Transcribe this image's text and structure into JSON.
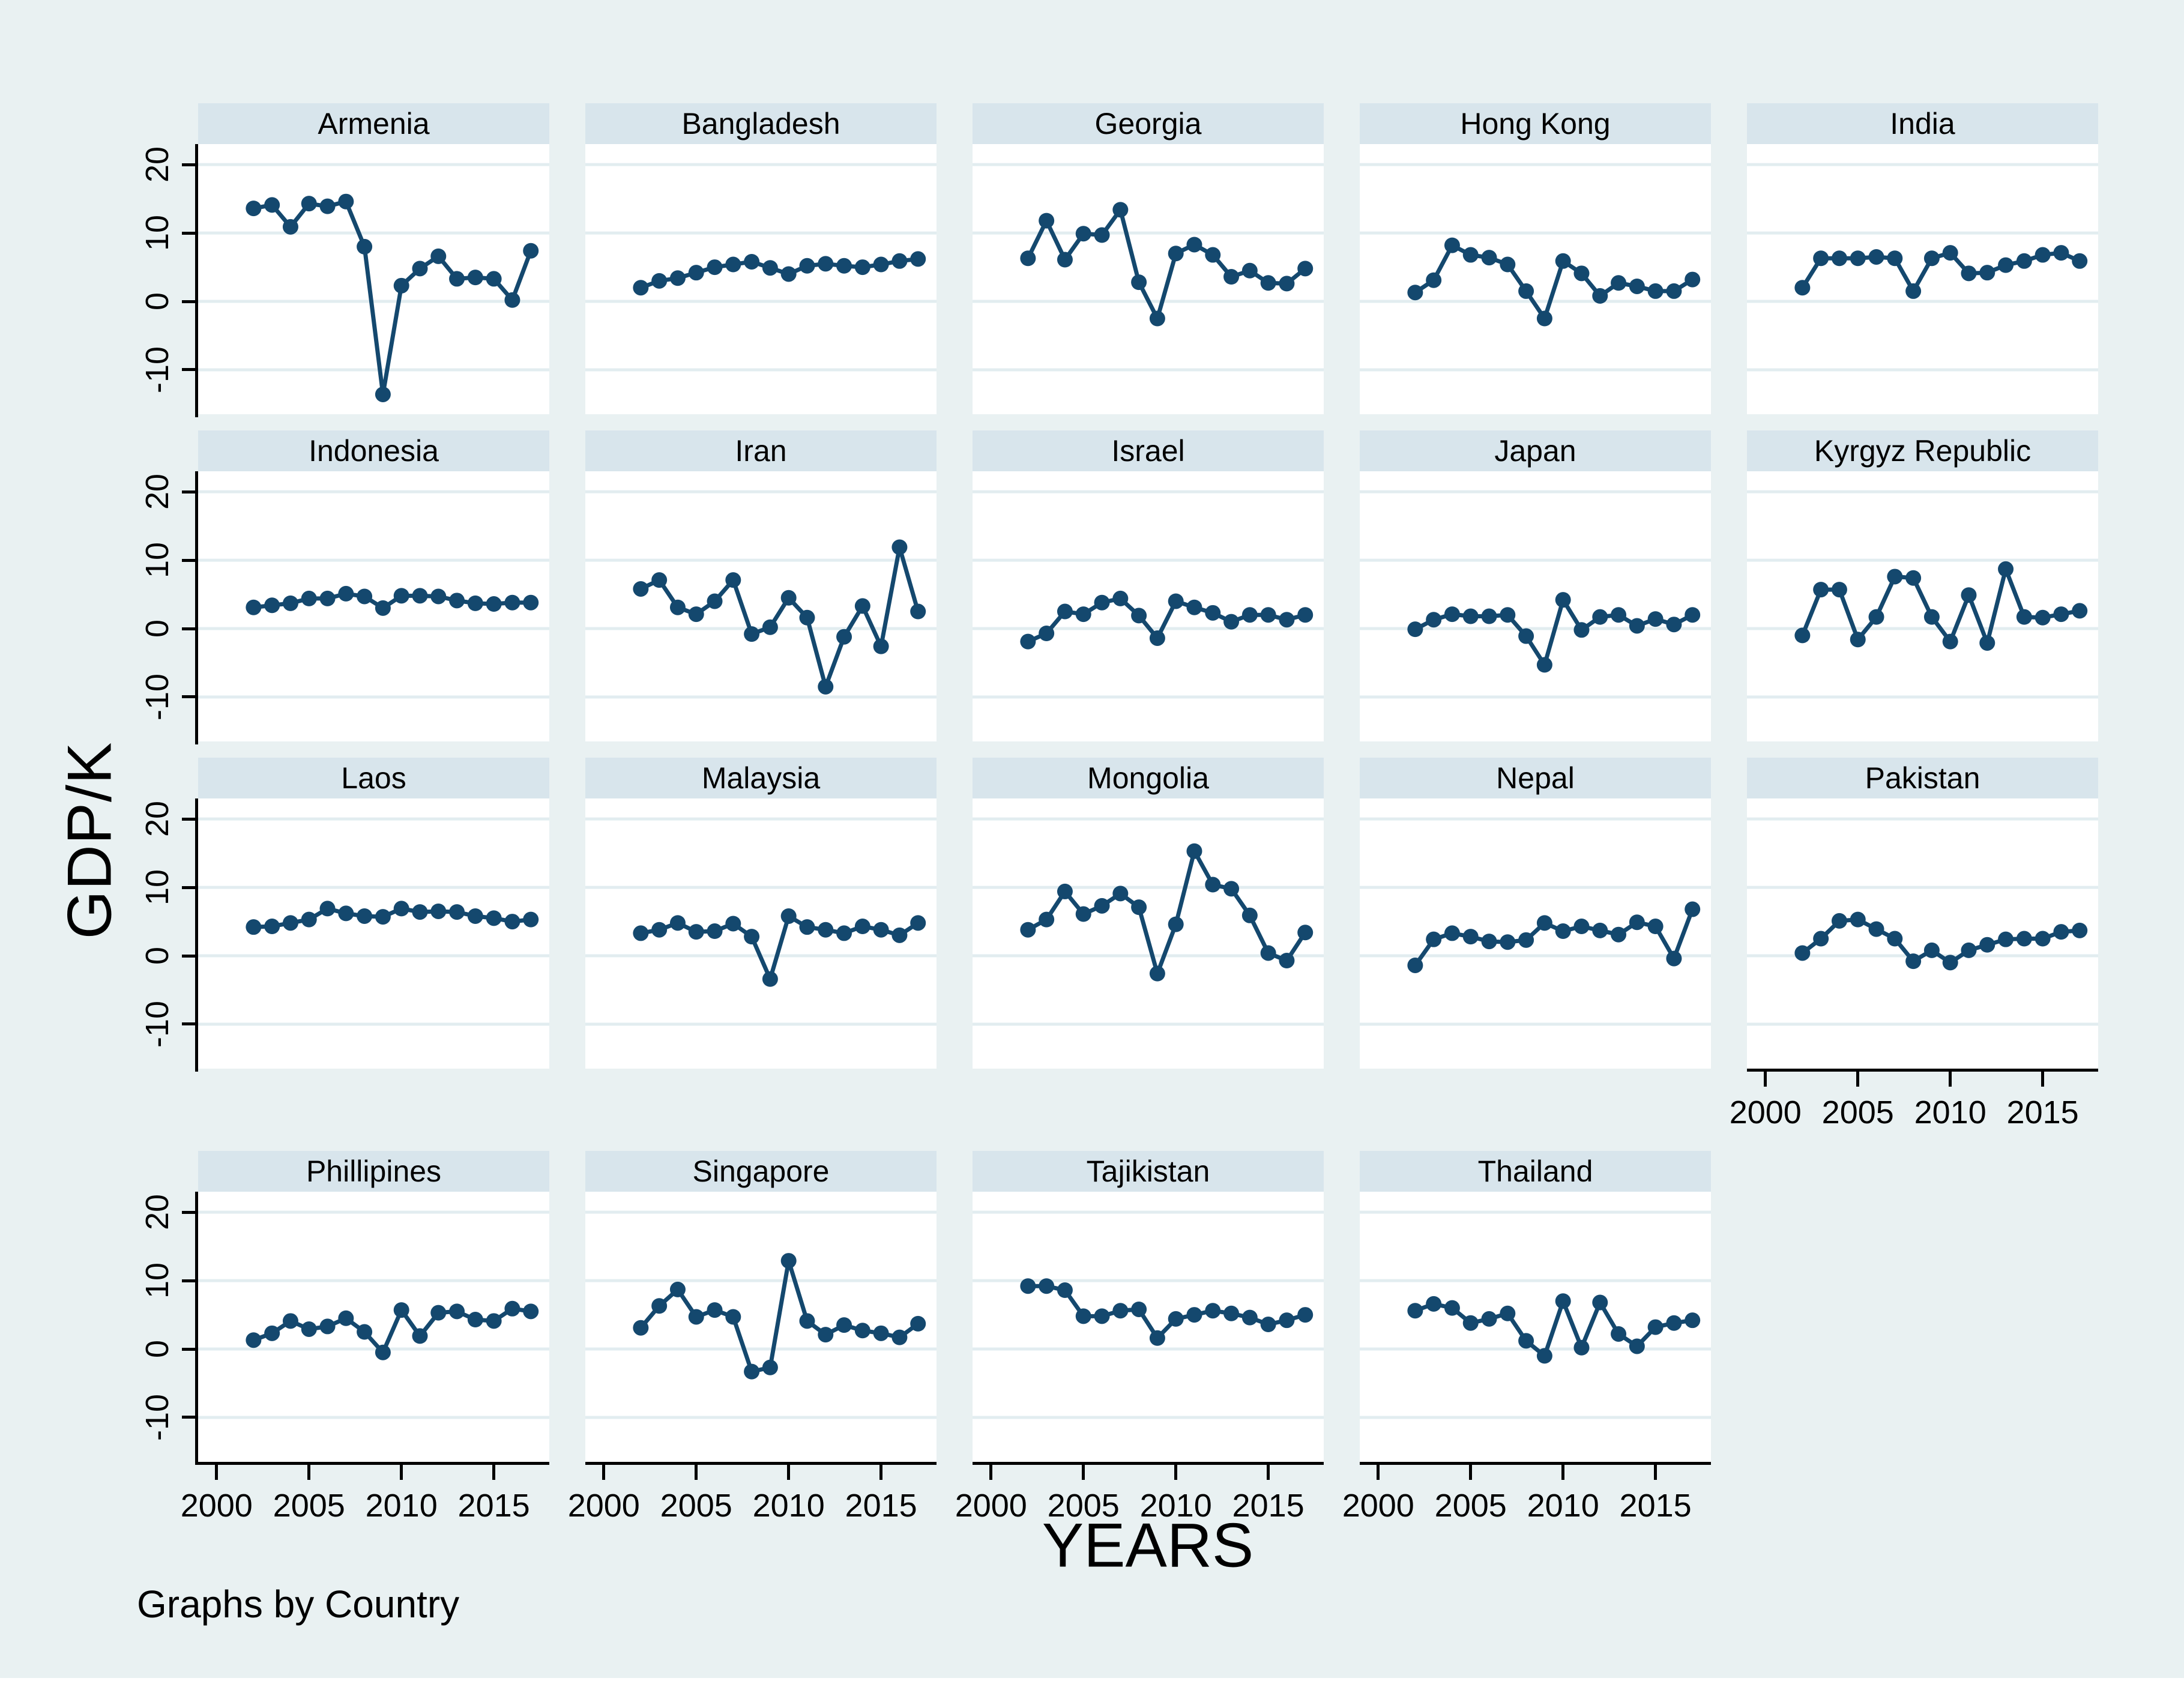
{
  "labels": {
    "y_axis_title": "GDP/K",
    "x_axis_title": "YEARS",
    "note": "Graphs by Country"
  },
  "colors": {
    "figure_background": "#e9f1f2",
    "panel_header_background": "#d8e5ec",
    "plot_background": "#ffffff",
    "gridline": "#e2edf0",
    "series_line": "#14486e",
    "axis": "#000000",
    "text": "#000000",
    "bottom_margin": "#ffffff"
  },
  "axes": {
    "y_ticks": [
      {
        "value": 20,
        "label": "20"
      },
      {
        "value": 10,
        "label": "10"
      },
      {
        "value": 0,
        "label": "0"
      },
      {
        "value": -10,
        "label": "-10"
      }
    ],
    "x_ticks": [
      {
        "value": 2000,
        "label": "2000"
      },
      {
        "value": 2005,
        "label": "2005"
      },
      {
        "value": 2010,
        "label": "2010"
      },
      {
        "value": 2015,
        "label": "2015"
      }
    ]
  },
  "chart_data": {
    "type": "line",
    "title": "",
    "xlabel": "YEARS",
    "ylabel": "GDP/K",
    "x": [
      2002,
      2003,
      2004,
      2005,
      2006,
      2007,
      2008,
      2009,
      2010,
      2011,
      2012,
      2013,
      2014,
      2015,
      2016,
      2017
    ],
    "xlim": [
      1999,
      2018
    ],
    "ylim": [
      -16.5,
      23
    ],
    "grid": true,
    "legend": "none",
    "marker": "circle",
    "panels": [
      {
        "title": "Armenia",
        "values": [
          13.6,
          14.1,
          10.9,
          14.3,
          13.9,
          14.6,
          8.0,
          -13.6,
          2.3,
          4.8,
          6.6,
          3.3,
          3.5,
          3.3,
          0.2,
          7.4
        ]
      },
      {
        "title": "Bangladesh",
        "values": [
          2.0,
          3.0,
          3.4,
          4.2,
          5.0,
          5.4,
          5.8,
          4.9,
          4.0,
          5.2,
          5.5,
          5.2,
          5.0,
          5.4,
          5.9,
          6.2
        ]
      },
      {
        "title": "Georgia",
        "values": [
          6.3,
          11.8,
          6.1,
          9.9,
          9.7,
          13.4,
          2.8,
          -2.5,
          7.0,
          8.3,
          6.8,
          3.6,
          4.5,
          2.7,
          2.6,
          4.8
        ]
      },
      {
        "title": "Hong Kong",
        "values": [
          1.3,
          3.1,
          8.2,
          6.8,
          6.4,
          5.4,
          1.5,
          -2.5,
          5.9,
          4.1,
          0.8,
          2.7,
          2.2,
          1.5,
          1.5,
          3.2
        ]
      },
      {
        "title": "India",
        "values": [
          2.0,
          6.3,
          6.3,
          6.3,
          6.5,
          6.3,
          1.5,
          6.3,
          7.1,
          4.1,
          4.2,
          5.3,
          5.9,
          6.8,
          7.1,
          5.9
        ]
      },
      {
        "title": "Indonesia",
        "values": [
          3.1,
          3.4,
          3.7,
          4.4,
          4.4,
          5.1,
          4.7,
          3.0,
          4.8,
          4.8,
          4.7,
          4.1,
          3.7,
          3.6,
          3.8,
          3.8
        ]
      },
      {
        "title": "Iran",
        "values": [
          5.8,
          7.1,
          3.1,
          2.1,
          4.0,
          7.1,
          -0.8,
          0.2,
          4.5,
          1.6,
          -8.5,
          -1.2,
          3.3,
          -2.6,
          11.9,
          2.5
        ]
      },
      {
        "title": "Israel",
        "values": [
          -1.9,
          -0.7,
          2.5,
          2.1,
          3.8,
          4.4,
          1.9,
          -1.4,
          4.0,
          3.1,
          2.3,
          1.0,
          2.0,
          2.0,
          1.3,
          2.0
        ]
      },
      {
        "title": "Japan",
        "values": [
          -0.1,
          1.3,
          2.1,
          1.8,
          1.8,
          2.0,
          -1.1,
          -5.3,
          4.2,
          -0.2,
          1.7,
          2.0,
          0.4,
          1.4,
          0.6,
          2.0
        ]
      },
      {
        "title": "Kyrgyz Republic",
        "values": [
          -1.0,
          5.7,
          5.7,
          -1.6,
          1.7,
          7.6,
          7.4,
          1.7,
          -1.9,
          4.9,
          -2.1,
          8.7,
          1.7,
          1.6,
          2.1,
          2.6
        ]
      },
      {
        "title": "Laos",
        "values": [
          4.2,
          4.3,
          4.8,
          5.3,
          6.9,
          6.2,
          5.8,
          5.7,
          6.9,
          6.4,
          6.5,
          6.4,
          5.8,
          5.5,
          5.0,
          5.3
        ]
      },
      {
        "title": "Malaysia",
        "values": [
          3.3,
          3.8,
          4.8,
          3.5,
          3.6,
          4.7,
          2.8,
          -3.4,
          5.8,
          4.2,
          3.8,
          3.3,
          4.3,
          3.8,
          3.0,
          4.8
        ]
      },
      {
        "title": "Mongolia",
        "values": [
          3.8,
          5.3,
          9.4,
          6.1,
          7.3,
          9.1,
          7.1,
          -2.6,
          4.6,
          15.3,
          10.4,
          9.8,
          5.9,
          0.4,
          -0.7,
          3.4
        ]
      },
      {
        "title": "Nepal",
        "values": [
          -1.4,
          2.4,
          3.3,
          2.8,
          2.1,
          2.0,
          2.3,
          4.8,
          3.6,
          4.3,
          3.7,
          3.1,
          4.9,
          4.3,
          -0.4,
          6.8
        ]
      },
      {
        "title": "Pakistan",
        "values": [
          0.4,
          2.5,
          5.1,
          5.3,
          3.9,
          2.5,
          -0.8,
          0.8,
          -1.0,
          0.8,
          1.6,
          2.4,
          2.5,
          2.5,
          3.5,
          3.7
        ]
      },
      {
        "title": "Phillipines",
        "values": [
          1.3,
          2.3,
          4.1,
          2.9,
          3.3,
          4.5,
          2.5,
          -0.5,
          5.7,
          1.9,
          5.3,
          5.5,
          4.3,
          4.1,
          5.9,
          5.5
        ]
      },
      {
        "title": "Singapore",
        "values": [
          3.1,
          6.3,
          8.7,
          4.7,
          5.7,
          4.7,
          -3.3,
          -2.7,
          12.9,
          4.1,
          2.1,
          3.5,
          2.7,
          2.3,
          1.7,
          3.7
        ]
      },
      {
        "title": "Tajikistan",
        "values": [
          9.2,
          9.2,
          8.6,
          4.8,
          4.8,
          5.6,
          5.8,
          1.6,
          4.4,
          5.0,
          5.6,
          5.2,
          4.6,
          3.6,
          4.2,
          5.0
        ]
      },
      {
        "title": "Thailand",
        "values": [
          5.6,
          6.6,
          6.0,
          3.8,
          4.4,
          5.2,
          1.2,
          -1.0,
          7.0,
          0.2,
          6.8,
          2.2,
          0.4,
          3.2,
          3.8,
          4.2
        ]
      }
    ]
  }
}
